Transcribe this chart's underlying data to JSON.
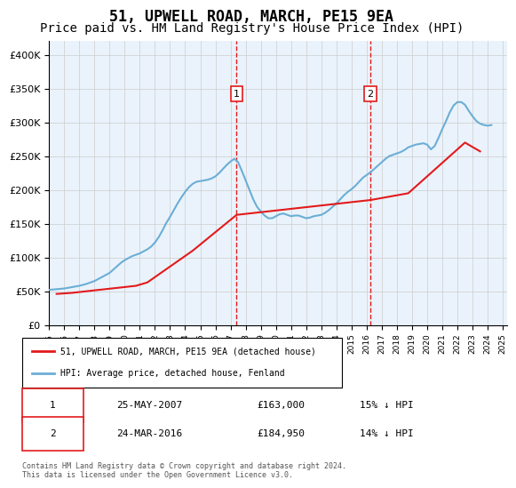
{
  "title": "51, UPWELL ROAD, MARCH, PE15 9EA",
  "subtitle": "Price paid vs. HM Land Registry's House Price Index (HPI)",
  "hpi_label": "HPI: Average price, detached house, Fenland",
  "price_label": "51, UPWELL ROAD, MARCH, PE15 9EA (detached house)",
  "footer": "Contains HM Land Registry data © Crown copyright and database right 2024.\nThis data is licensed under the Open Government Licence v3.0.",
  "legend1_date": "25-MAY-2007",
  "legend1_price": "£163,000",
  "legend1_hpi": "15% ↓ HPI",
  "legend2_date": "24-MAR-2016",
  "legend2_price": "£184,950",
  "legend2_hpi": "14% ↓ HPI",
  "marker1_year": 2007.4,
  "marker2_year": 2016.25,
  "ylim": [
    0,
    420000
  ],
  "yticks": [
    0,
    50000,
    100000,
    150000,
    200000,
    250000,
    300000,
    350000,
    400000
  ],
  "ytick_labels": [
    "£0",
    "£50K",
    "£100K",
    "£150K",
    "£200K",
    "£250K",
    "£300K",
    "£350K",
    "£400K"
  ],
  "hpi_color": "#6baed6",
  "price_color": "#e31a1c",
  "bg_color": "#eaf3fb",
  "marker_color": "#e31a1c",
  "grid_color": "#cccccc",
  "title_fontsize": 12,
  "subtitle_fontsize": 10,
  "hpi_data": {
    "years": [
      1995.0,
      1995.25,
      1995.5,
      1995.75,
      1996.0,
      1996.25,
      1996.5,
      1996.75,
      1997.0,
      1997.25,
      1997.5,
      1997.75,
      1998.0,
      1998.25,
      1998.5,
      1998.75,
      1999.0,
      1999.25,
      1999.5,
      1999.75,
      2000.0,
      2000.25,
      2000.5,
      2000.75,
      2001.0,
      2001.25,
      2001.5,
      2001.75,
      2002.0,
      2002.25,
      2002.5,
      2002.75,
      2003.0,
      2003.25,
      2003.5,
      2003.75,
      2004.0,
      2004.25,
      2004.5,
      2004.75,
      2005.0,
      2005.25,
      2005.5,
      2005.75,
      2006.0,
      2006.25,
      2006.5,
      2006.75,
      2007.0,
      2007.25,
      2007.5,
      2007.75,
      2008.0,
      2008.25,
      2008.5,
      2008.75,
      2009.0,
      2009.25,
      2009.5,
      2009.75,
      2010.0,
      2010.25,
      2010.5,
      2010.75,
      2011.0,
      2011.25,
      2011.5,
      2011.75,
      2012.0,
      2012.25,
      2012.5,
      2012.75,
      2013.0,
      2013.25,
      2013.5,
      2013.75,
      2014.0,
      2014.25,
      2014.5,
      2014.75,
      2015.0,
      2015.25,
      2015.5,
      2015.75,
      2016.0,
      2016.25,
      2016.5,
      2016.75,
      2017.0,
      2017.25,
      2017.5,
      2017.75,
      2018.0,
      2018.25,
      2018.5,
      2018.75,
      2019.0,
      2019.25,
      2019.5,
      2019.75,
      2020.0,
      2020.25,
      2020.5,
      2020.75,
      2021.0,
      2021.25,
      2021.5,
      2021.75,
      2022.0,
      2022.25,
      2022.5,
      2022.75,
      2023.0,
      2023.25,
      2023.5,
      2023.75,
      2024.0,
      2024.25
    ],
    "values": [
      52000,
      52500,
      53000,
      53500,
      54000,
      55000,
      56000,
      57000,
      58000,
      59500,
      61000,
      63000,
      65000,
      68000,
      71000,
      74000,
      77000,
      82000,
      87000,
      92000,
      96000,
      99000,
      102000,
      104000,
      106000,
      109000,
      112000,
      116000,
      122000,
      130000,
      140000,
      151000,
      160000,
      170000,
      180000,
      189000,
      197000,
      204000,
      209000,
      212000,
      213000,
      214000,
      215000,
      217000,
      220000,
      225000,
      231000,
      237000,
      242000,
      246000,
      241000,
      228000,
      214000,
      200000,
      186000,
      175000,
      168000,
      162000,
      158000,
      158000,
      161000,
      164000,
      165000,
      163000,
      161000,
      162000,
      162000,
      160000,
      158000,
      159000,
      161000,
      162000,
      163000,
      166000,
      170000,
      175000,
      180000,
      186000,
      192000,
      197000,
      201000,
      206000,
      212000,
      218000,
      222000,
      226000,
      231000,
      236000,
      241000,
      246000,
      250000,
      252000,
      254000,
      256000,
      259000,
      263000,
      265000,
      267000,
      268000,
      269000,
      267000,
      260000,
      265000,
      277000,
      290000,
      302000,
      315000,
      325000,
      330000,
      330000,
      326000,
      317000,
      309000,
      302000,
      298000,
      296000,
      295000,
      296000
    ]
  },
  "price_data": {
    "years": [
      1995.5,
      1996.5,
      1997.5,
      2000.75,
      2001.5,
      2004.5,
      2007.4,
      2016.25,
      2018.75,
      2021.75,
      2022.5,
      2023.5
    ],
    "values": [
      46000,
      47500,
      50000,
      58000,
      63000,
      110000,
      163000,
      184950,
      195000,
      255000,
      270000,
      257000
    ]
  }
}
